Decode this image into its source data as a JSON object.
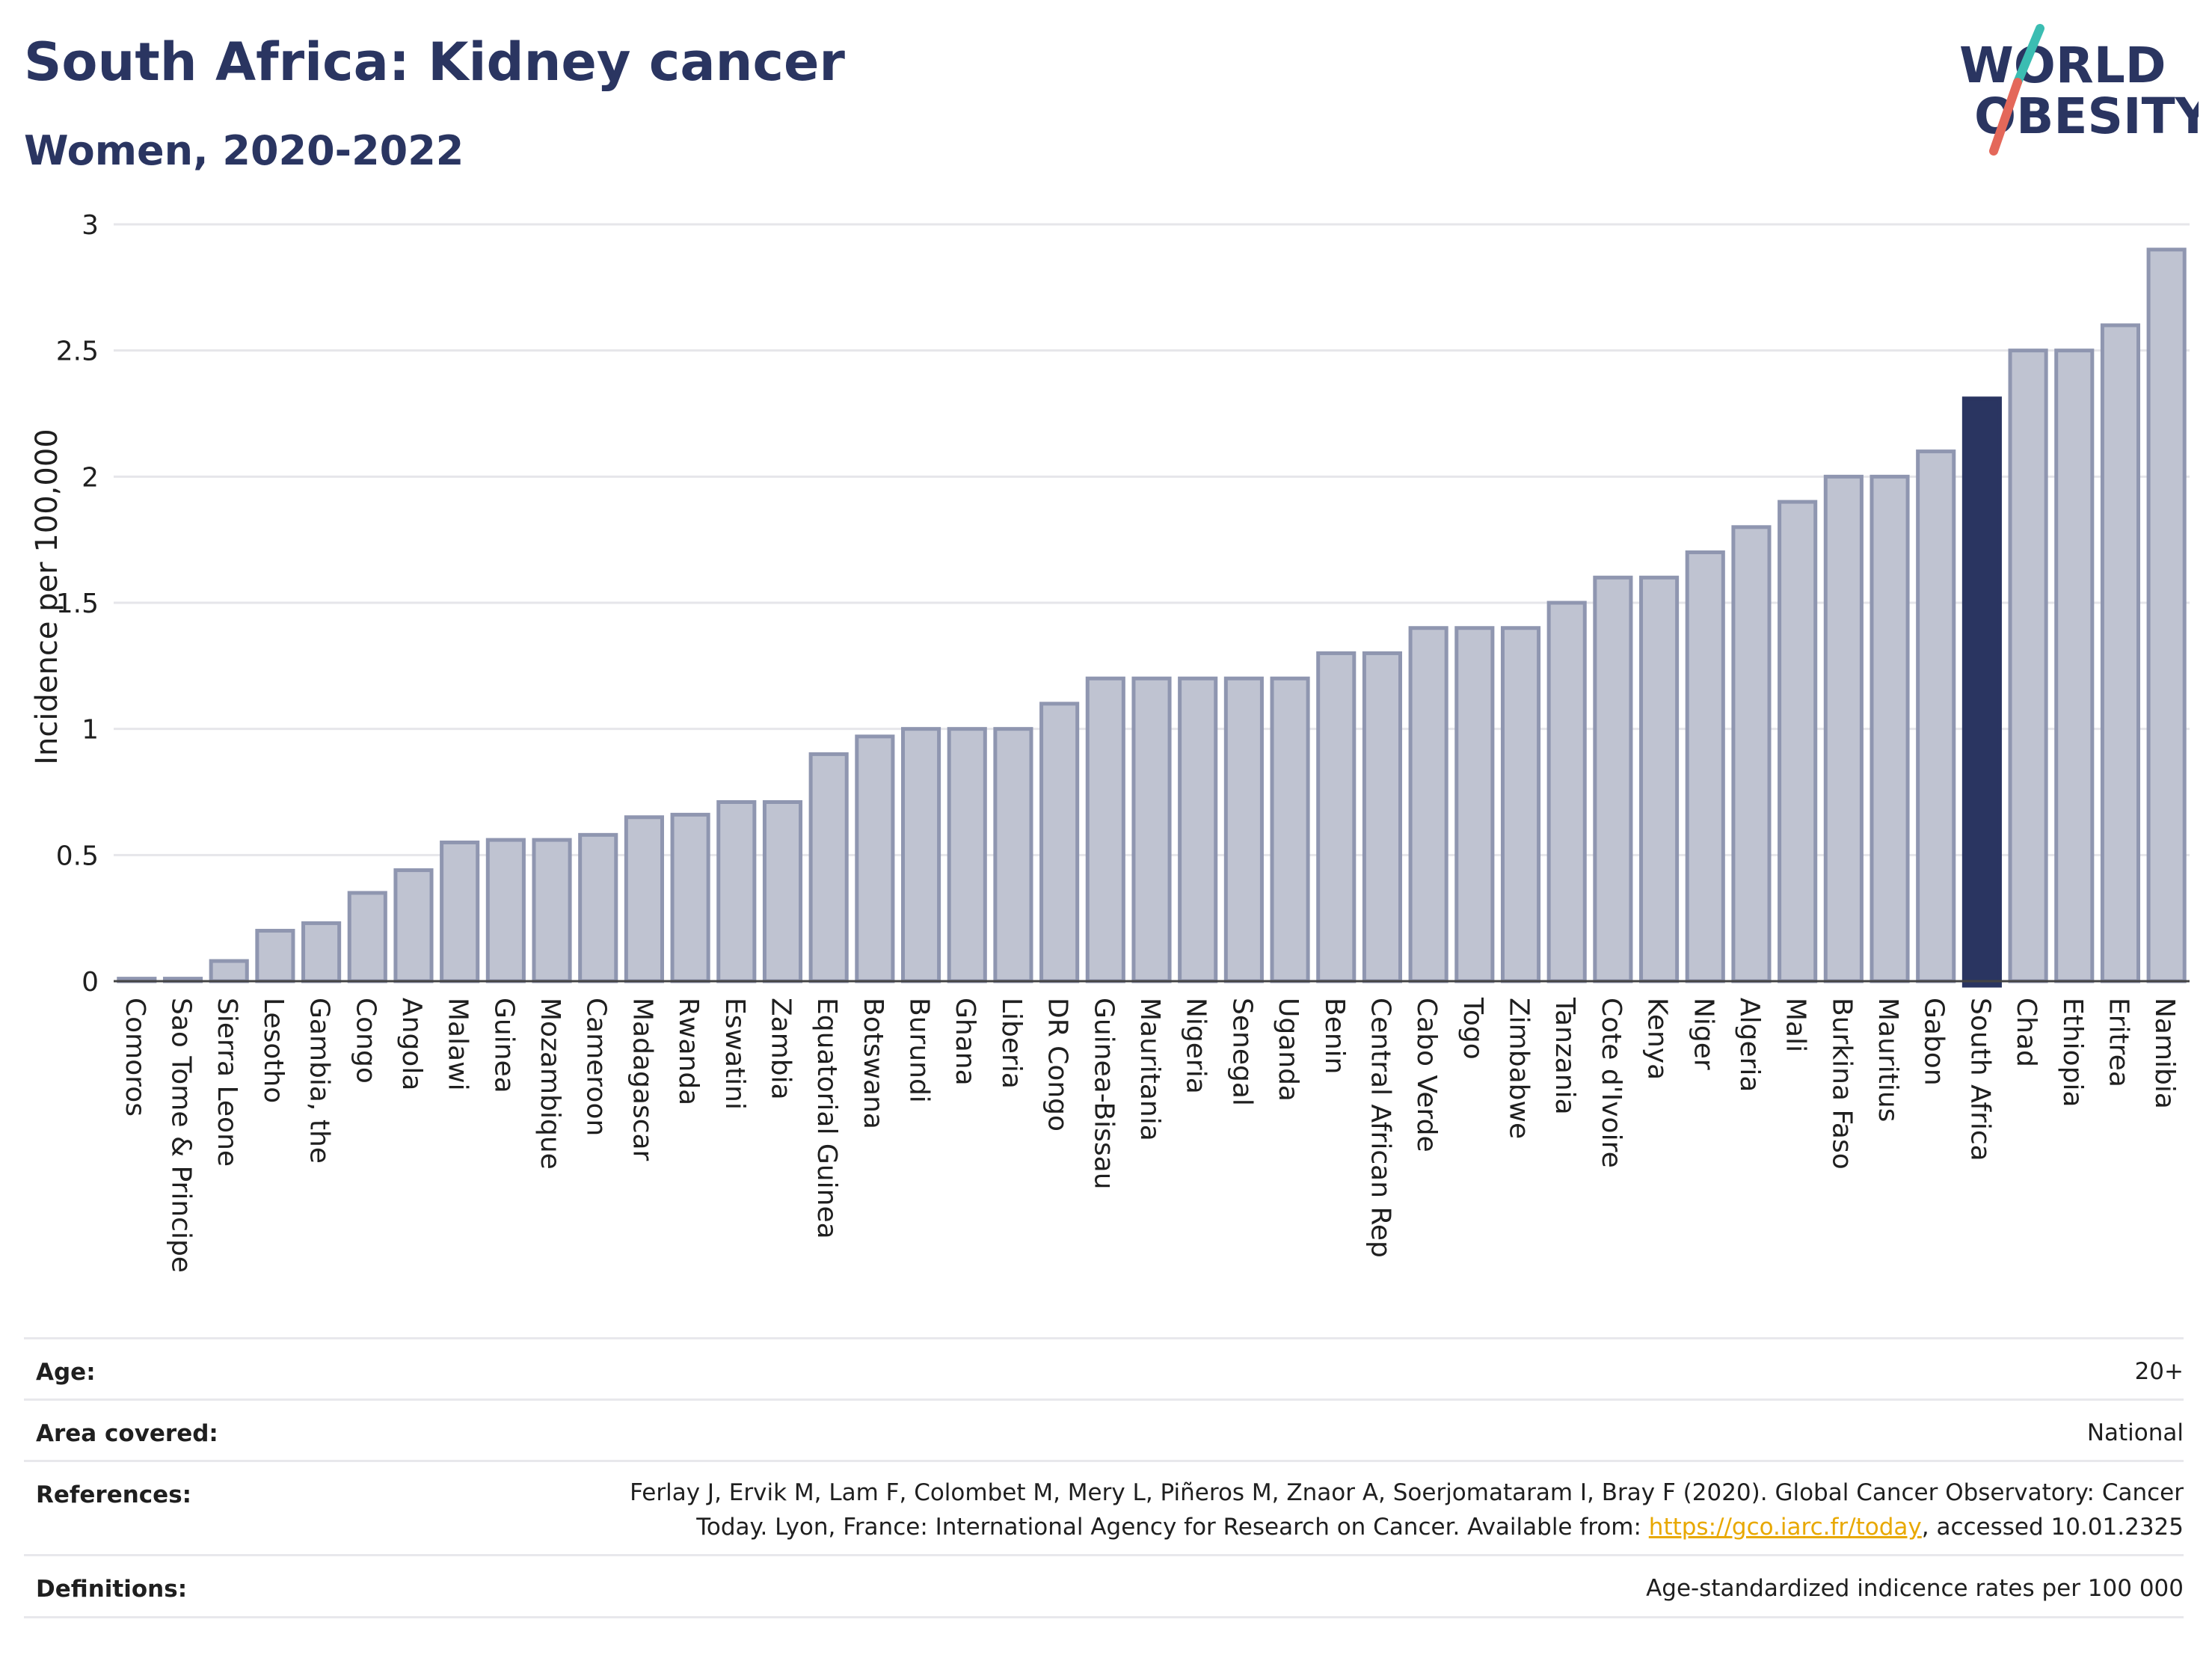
{
  "header": {
    "title": "South Africa: Kidney cancer",
    "subtitle": "Women, 2020-2022"
  },
  "logo": {
    "line1": "WORLD",
    "line2": "OBESITY"
  },
  "chart_data": {
    "type": "bar",
    "ylabel": "Incidence per 100,000",
    "ylim": [
      0,
      3
    ],
    "yticks": [
      0,
      0.5,
      1,
      1.5,
      2,
      2.5,
      3
    ],
    "ytick_labels": [
      "0",
      "0.5",
      "1",
      "1.5",
      "2",
      "2.5",
      "3"
    ],
    "highlight": "South Africa",
    "colors": {
      "bar": "#bfc3d1",
      "bar_edge": "#8f96b0",
      "highlight": "#2a3561",
      "grid": "#e6e6ea"
    },
    "categories": [
      "Comoros",
      "Sao Tome & Principe",
      "Sierra Leone",
      "Lesotho",
      "Gambia, the",
      "Congo",
      "Angola",
      "Malawi",
      "Guinea",
      "Mozambique",
      "Cameroon",
      "Madagascar",
      "Rwanda",
      "Eswatini",
      "Zambia",
      "Equatorial Guinea",
      "Botswana",
      "Burundi",
      "Ghana",
      "Liberia",
      "DR Congo",
      "Guinea-Bissau",
      "Mauritania",
      "Nigeria",
      "Senegal",
      "Uganda",
      "Benin",
      "Central African Rep",
      "Cabo Verde",
      "Togo",
      "Zimbabwe",
      "Tanzania",
      "Cote d'Ivoire",
      "Kenya",
      "Niger",
      "Algeria",
      "Mali",
      "Burkina Faso",
      "Mauritius",
      "Gabon",
      "South Africa",
      "Chad",
      "Ethiopia",
      "Eritrea",
      "Namibia"
    ],
    "values": [
      0.01,
      0.01,
      0.08,
      0.2,
      0.23,
      0.35,
      0.44,
      0.55,
      0.56,
      0.56,
      0.58,
      0.65,
      0.66,
      0.71,
      0.71,
      0.9,
      0.97,
      1.0,
      1.0,
      1.0,
      1.1,
      1.2,
      1.2,
      1.2,
      1.2,
      1.2,
      1.3,
      1.3,
      1.4,
      1.4,
      1.4,
      1.5,
      1.6,
      1.6,
      1.7,
      1.8,
      1.9,
      2.0,
      2.0,
      2.1,
      2.31,
      2.5,
      2.5,
      2.6,
      2.9
    ]
  },
  "meta": {
    "age_label": "Age:",
    "age_value": "20+",
    "area_label": "Area covered:",
    "area_value": "National",
    "ref_label": "References:",
    "ref_line1": "Ferlay J, Ervik M, Lam F, Colombet M, Mery L, Piñeros M, Znaor A, Soerjomataram I, Bray F (2020). Global Cancer Observatory: Cancer",
    "ref_line2_pre": "Today. Lyon, France: International Agency for Research on Cancer. Available from: ",
    "ref_link": "https://gco.iarc.fr/today",
    "ref_line2_post": ", accessed 10.01.2325",
    "def_label": "Definitions:",
    "def_value": "Age-standardized indicence rates per 100 000"
  }
}
